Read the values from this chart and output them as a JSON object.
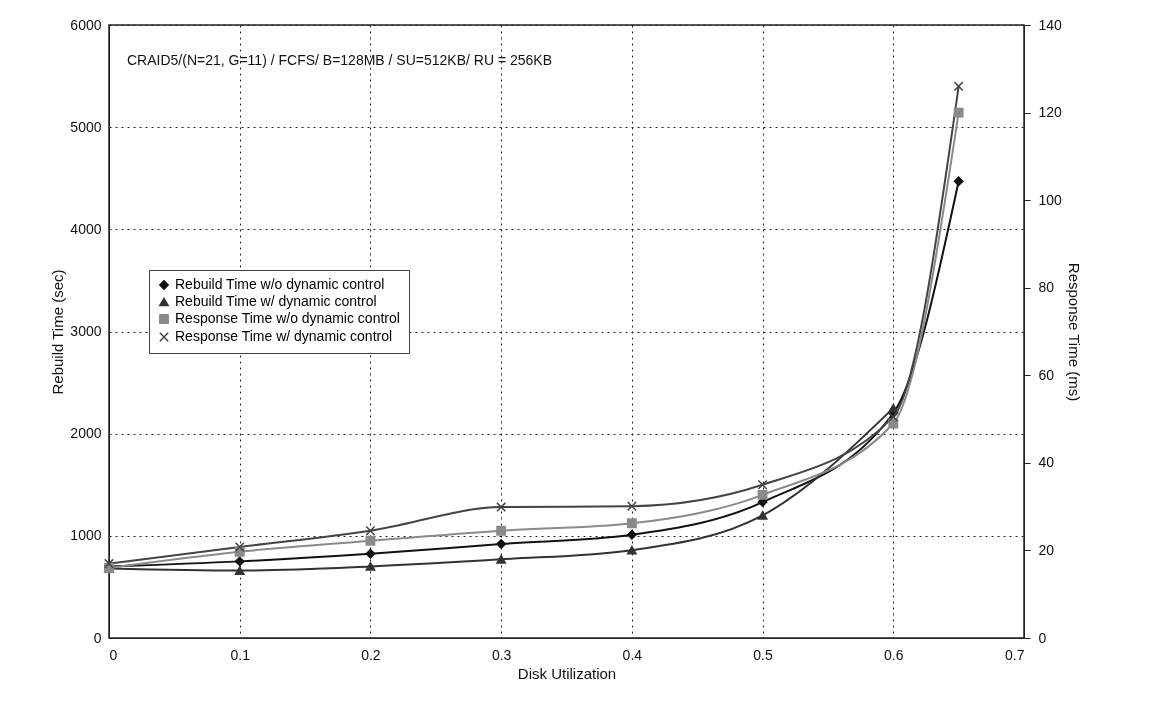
{
  "chart_data": {
    "type": "line",
    "xlabel": "Disk Utilization",
    "ylabel": "Rebuild Time (sec)",
    "y2label": "Response Time (ms)",
    "annotations": [
      "CRAID5/(N=21, G=11) / FCFS/ B=128MB / SU=512KB/ RU = 256KB"
    ],
    "x": [
      0,
      0.1,
      0.2,
      0.3,
      0.4,
      0.5,
      0.6,
      0.65
    ],
    "series": [
      {
        "name": "Rebuild Time w/o dynamic control",
        "color": "#111111",
        "marker": "diamond",
        "values": [
          700,
          750,
          825,
          920,
          1010,
          1330,
          2200,
          4470
        ]
      },
      {
        "name": "Rebuild Time w/ dynamic control",
        "color": "#333333",
        "marker": "triangle",
        "values": [
          680,
          660,
          700,
          770,
          860,
          1200,
          2250,
          null
        ]
      },
      {
        "name": "Response Time w/o dynamic control",
        "color": "#8a8a8a",
        "marker": "square",
        "axis": "y2",
        "values": [
          16,
          19.7,
          22.2,
          24.5,
          26.2,
          32.7,
          49,
          120
        ]
      },
      {
        "name": "Response Time w/ dynamic control",
        "color": "#444444",
        "marker": "cross",
        "axis": "y2",
        "values": [
          17,
          20.8,
          24.5,
          29.9,
          30.1,
          35,
          50.5,
          126
        ]
      }
    ],
    "xlim": [
      0,
      0.7
    ],
    "xticks": [
      0,
      0.1,
      0.2,
      0.3,
      0.4,
      0.5,
      0.6,
      0.7
    ],
    "ylim": [
      0,
      6000
    ],
    "yticks": [
      0,
      1000,
      2000,
      3000,
      4000,
      5000,
      6000
    ],
    "y2lim": [
      0,
      140
    ],
    "y2ticks": [
      0,
      20,
      40,
      60,
      80,
      100,
      120,
      140
    ],
    "grid": true,
    "legend": "left",
    "line_style": "solid"
  }
}
